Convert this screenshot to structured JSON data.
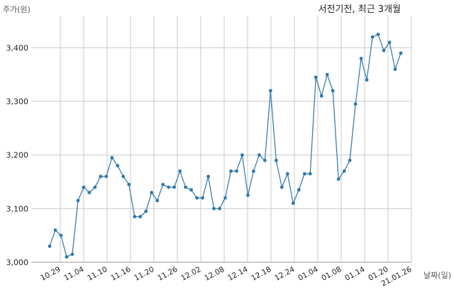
{
  "chart_data": {
    "type": "line",
    "title": "서전기전, 최근 3개월",
    "ylabel": "주가(원)",
    "xlabel": "날짜(일)",
    "ylim": [
      3000,
      3460
    ],
    "yticks": [
      3000,
      3100,
      3200,
      3300,
      3400
    ],
    "ytick_labels": [
      "3,000",
      "3,100",
      "3,200",
      "3,300",
      "3,400"
    ],
    "grid": true,
    "x_tick_labels": [
      "10.29",
      "11.04",
      "11.10",
      "11.16",
      "11.20",
      "11.26",
      "12.02",
      "12.08",
      "12.14",
      "12.18",
      "12.24",
      "01.04",
      "01.08",
      "01.14",
      "01.20",
      "21.01.26"
    ],
    "series": [
      {
        "values": [
          3030,
          3060,
          3050,
          3010,
          3015,
          3115,
          3140,
          3130,
          3140,
          3160,
          3160,
          3195,
          3180,
          3160,
          3145,
          3085,
          3085,
          3095,
          3130,
          3115,
          3145,
          3140,
          3140,
          3170,
          3140,
          3135,
          3120,
          3120,
          3160,
          3100,
          3100,
          3120,
          3170,
          3170,
          3200,
          3125,
          3170,
          3200,
          3190,
          3320,
          3190,
          3140,
          3165,
          3110,
          3135,
          3165,
          3165,
          3345,
          3310,
          3350,
          3320,
          3155,
          3170,
          3190,
          3295,
          3380,
          3340,
          3420,
          3425,
          3395,
          3410,
          3360,
          3390
        ]
      }
    ]
  }
}
